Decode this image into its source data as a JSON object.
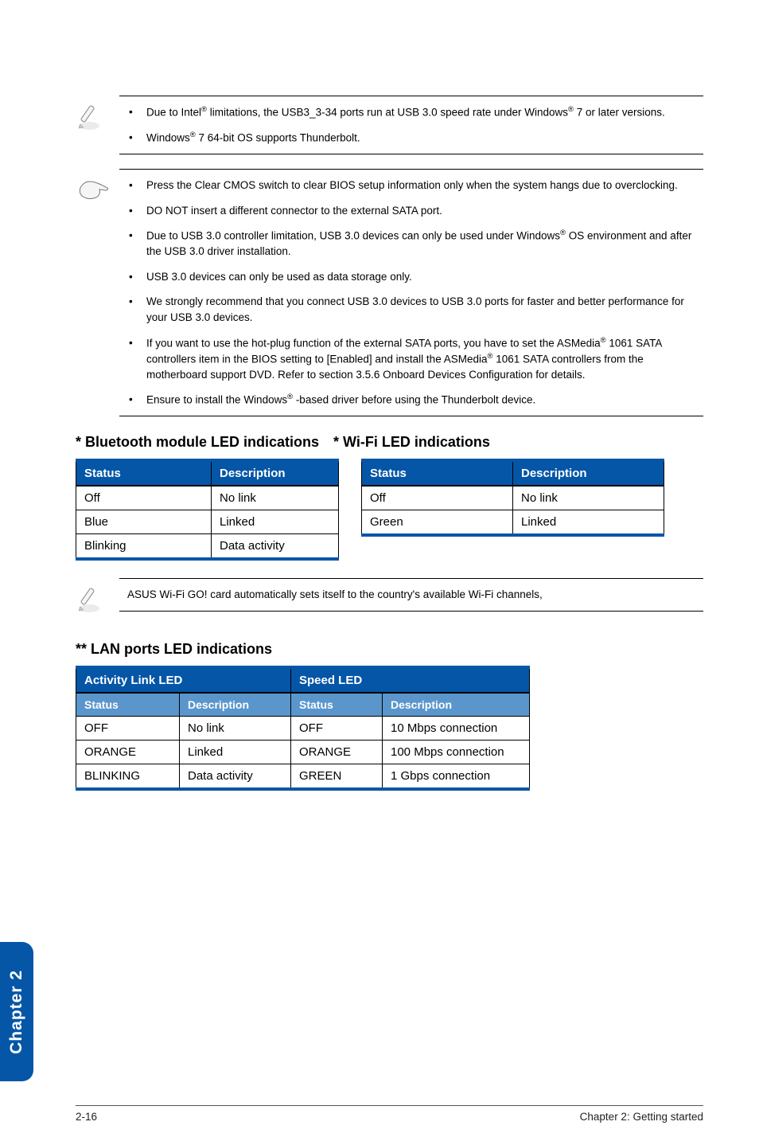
{
  "notes1": {
    "items": [
      "Due to Intel® limitations, the USB3_3-34 ports run at USB 3.0 speed rate under Windows® 7 or later versions.",
      "Windows® 7 64-bit OS supports Thunderbolt."
    ]
  },
  "notes2": {
    "items": [
      "Press the Clear CMOS switch to clear BIOS setup information only when the system hangs due to overclocking.",
      "DO NOT insert a different connector to the external SATA port.",
      "Due to USB 3.0 controller limitation, USB 3.0 devices can only be used under Windows® OS environment and after the USB 3.0 driver installation.",
      "USB 3.0 devices can only be used as data storage only.",
      "We strongly recommend that you connect USB 3.0 devices to USB 3.0 ports for faster and better performance for your USB 3.0 devices.",
      "If you want to use the hot-plug function of the external SATA ports, you have to set the ASMedia® 1061 SATA controllers item in the BIOS setting to [Enabled] and install the ASMedia® 1061 SATA controllers from the motherboard support DVD. Refer to section 3.5.6 Onboard Devices Configuration for details.",
      "Ensure to install the Windows® -based driver before using the Thunderbolt device."
    ]
  },
  "bt_heading": "* Bluetooth module LED indications",
  "wifi_heading": "* Wi-Fi LED indications",
  "bt_table": {
    "header_status": "Status",
    "header_desc": "Description",
    "rows": [
      {
        "status": "Off",
        "desc": "No link"
      },
      {
        "status": "Blue",
        "desc": "Linked"
      },
      {
        "status": "Blinking",
        "desc": "Data activity"
      }
    ]
  },
  "wifi_table": {
    "header_status": "Status",
    "header_desc": "Description",
    "rows": [
      {
        "status": "Off",
        "desc": "No link"
      },
      {
        "status": "Green",
        "desc": "Linked"
      }
    ]
  },
  "wifi_note": "ASUS Wi-Fi GO! card automatically sets itself to the country's available Wi-Fi channels,",
  "lan_heading": "** LAN ports LED indications",
  "lan_table": {
    "group_activity": "Activity Link LED",
    "group_speed": "Speed LED",
    "sub_status": "Status",
    "sub_desc": "Description",
    "rows": [
      {
        "astat": "OFF",
        "adesc": "No link",
        "sstat": "OFF",
        "sdesc": "10 Mbps connection"
      },
      {
        "astat": "ORANGE",
        "adesc": "Linked",
        "sstat": "ORANGE",
        "sdesc": "100 Mbps connection"
      },
      {
        "astat": "BLINKING",
        "adesc": "Data activity",
        "sstat": "GREEN",
        "sdesc": "1 Gbps connection"
      }
    ]
  },
  "sidebar": "Chapter 2",
  "footer_left": "2-16",
  "footer_right": "Chapter 2: Getting started",
  "colors": {
    "header_bg": "#0556a7",
    "subheader_bg": "#5a96cc",
    "text": "#000000"
  },
  "bt_col_widths": [
    170,
    160
  ],
  "wifi_col_widths": [
    190,
    190
  ],
  "lan_col_widths": [
    130,
    140,
    115,
    185
  ]
}
